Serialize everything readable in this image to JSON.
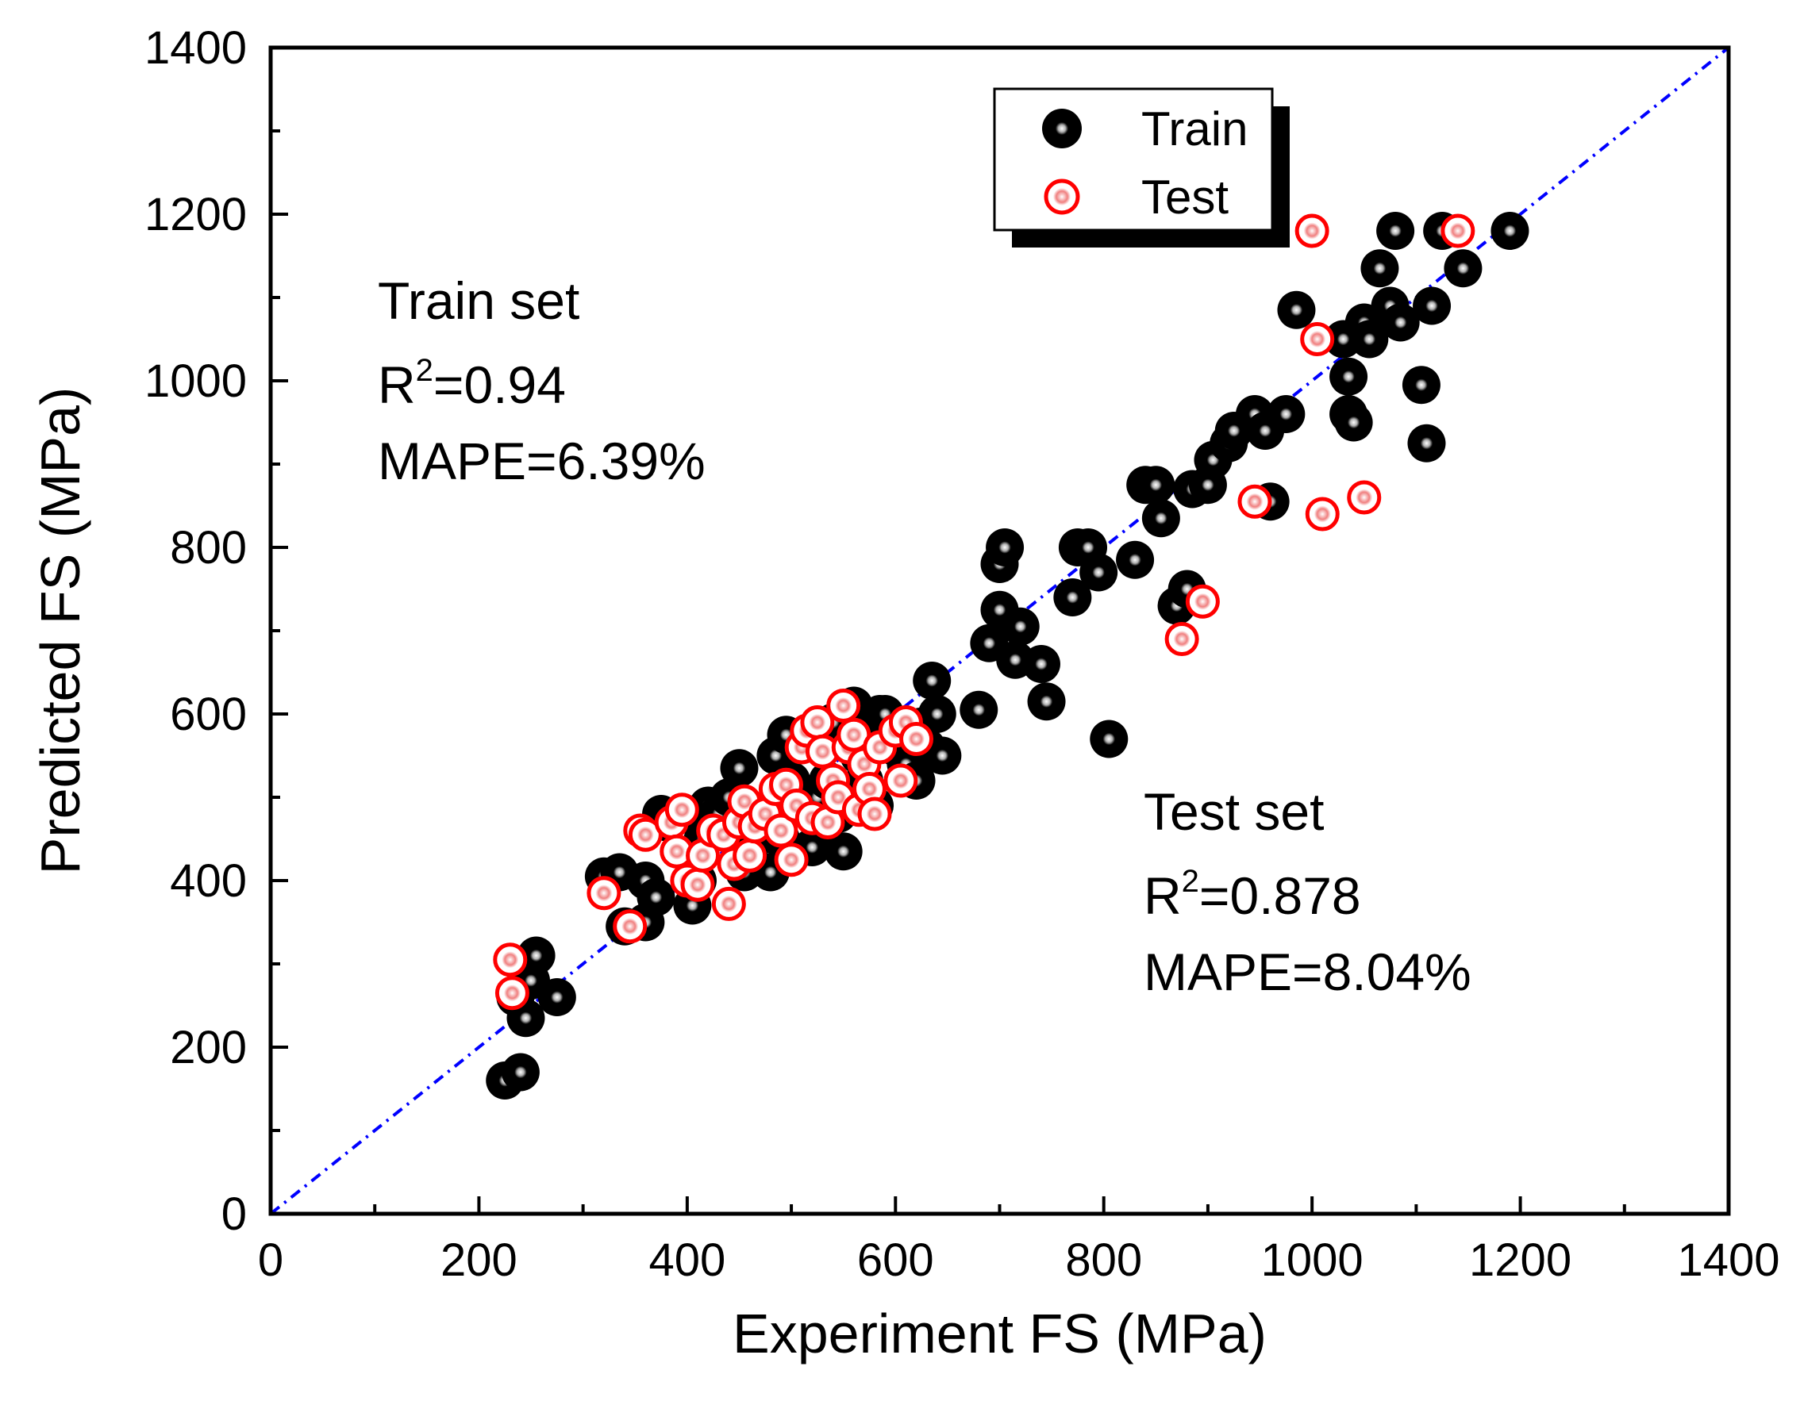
{
  "chart_data": {
    "type": "scatter",
    "title": "",
    "xlabel": "Experiment FS (MPa)",
    "ylabel": "Predicted FS (MPa)",
    "xlim": [
      0,
      1400
    ],
    "ylim": [
      0,
      1400
    ],
    "x_ticks": [
      "0",
      "200",
      "400",
      "600",
      "800",
      "1000",
      "1200",
      "1400"
    ],
    "y_ticks": [
      "0",
      "200",
      "400",
      "600",
      "800",
      "1000",
      "1200",
      "1400"
    ],
    "minor_tick_step": 100,
    "reference_line": {
      "label": "y = x",
      "from": [
        0,
        0
      ],
      "to": [
        1400,
        1400
      ],
      "color": "#0000ff",
      "style": "dash-dot"
    },
    "legend": {
      "position": "top-center",
      "entries": [
        "Train",
        "Test"
      ]
    },
    "annotations": {
      "train": {
        "heading": "Train set",
        "r2_prefix": "R",
        "r2_sup": "2",
        "r2_value": "=0.94",
        "mape": "MAPE=6.39%"
      },
      "test": {
        "heading": "Test set",
        "r2_prefix": "R",
        "r2_sup": "2",
        "r2_value": "=0.878",
        "mape": "MAPE=8.04%"
      }
    },
    "series": [
      {
        "name": "Train",
        "marker": "filled-sphere",
        "color": "#000000",
        "points": [
          [
            225,
            160
          ],
          [
            240,
            170
          ],
          [
            235,
            260
          ],
          [
            245,
            235
          ],
          [
            250,
            280
          ],
          [
            255,
            310
          ],
          [
            275,
            260
          ],
          [
            320,
            405
          ],
          [
            335,
            410
          ],
          [
            340,
            345
          ],
          [
            360,
            350
          ],
          [
            360,
            400
          ],
          [
            370,
            380
          ],
          [
            375,
            480
          ],
          [
            380,
            470
          ],
          [
            400,
            480
          ],
          [
            405,
            370
          ],
          [
            410,
            400
          ],
          [
            415,
            450
          ],
          [
            420,
            490
          ],
          [
            425,
            470
          ],
          [
            430,
            480
          ],
          [
            440,
            500
          ],
          [
            450,
            535
          ],
          [
            455,
            410
          ],
          [
            460,
            440
          ],
          [
            470,
            480
          ],
          [
            480,
            410
          ],
          [
            485,
            550
          ],
          [
            490,
            450
          ],
          [
            495,
            575
          ],
          [
            500,
            520
          ],
          [
            510,
            490
          ],
          [
            520,
            440
          ],
          [
            525,
            500
          ],
          [
            530,
            560
          ],
          [
            535,
            520
          ],
          [
            540,
            590
          ],
          [
            545,
            480
          ],
          [
            550,
            435
          ],
          [
            560,
            610
          ],
          [
            565,
            550
          ],
          [
            570,
            520
          ],
          [
            575,
            560
          ],
          [
            580,
            490
          ],
          [
            585,
            600
          ],
          [
            590,
            600
          ],
          [
            600,
            560
          ],
          [
            610,
            540
          ],
          [
            620,
            520
          ],
          [
            625,
            585
          ],
          [
            630,
            560
          ],
          [
            635,
            640
          ],
          [
            640,
            600
          ],
          [
            645,
            550
          ],
          [
            680,
            605
          ],
          [
            690,
            685
          ],
          [
            700,
            780
          ],
          [
            700,
            725
          ],
          [
            705,
            800
          ],
          [
            715,
            665
          ],
          [
            720,
            705
          ],
          [
            740,
            660
          ],
          [
            745,
            615
          ],
          [
            770,
            740
          ],
          [
            775,
            800
          ],
          [
            785,
            800
          ],
          [
            795,
            770
          ],
          [
            805,
            570
          ],
          [
            830,
            785
          ],
          [
            840,
            875
          ],
          [
            850,
            875
          ],
          [
            855,
            835
          ],
          [
            870,
            730
          ],
          [
            880,
            750
          ],
          [
            885,
            870
          ],
          [
            900,
            875
          ],
          [
            905,
            905
          ],
          [
            920,
            925
          ],
          [
            925,
            940
          ],
          [
            945,
            960
          ],
          [
            955,
            940
          ],
          [
            960,
            855
          ],
          [
            975,
            960
          ],
          [
            985,
            1085
          ],
          [
            1030,
            1050
          ],
          [
            1035,
            1005
          ],
          [
            1035,
            960
          ],
          [
            1040,
            950
          ],
          [
            1050,
            1070
          ],
          [
            1055,
            1050
          ],
          [
            1065,
            1135
          ],
          [
            1075,
            1090
          ],
          [
            1080,
            1180
          ],
          [
            1085,
            1070
          ],
          [
            1105,
            995
          ],
          [
            1110,
            925
          ],
          [
            1115,
            1090
          ],
          [
            1125,
            1180
          ],
          [
            1145,
            1135
          ],
          [
            1190,
            1180
          ]
        ]
      },
      {
        "name": "Test",
        "marker": "hollow-ring",
        "color": "#ff0000",
        "points": [
          [
            230,
            305
          ],
          [
            232,
            265
          ],
          [
            320,
            385
          ],
          [
            345,
            345
          ],
          [
            355,
            460
          ],
          [
            360,
            455
          ],
          [
            385,
            470
          ],
          [
            390,
            435
          ],
          [
            395,
            485
          ],
          [
            400,
            400
          ],
          [
            410,
            395
          ],
          [
            415,
            430
          ],
          [
            425,
            460
          ],
          [
            435,
            455
          ],
          [
            440,
            372
          ],
          [
            445,
            420
          ],
          [
            450,
            470
          ],
          [
            455,
            495
          ],
          [
            460,
            430
          ],
          [
            465,
            465
          ],
          [
            475,
            480
          ],
          [
            485,
            510
          ],
          [
            490,
            460
          ],
          [
            495,
            515
          ],
          [
            500,
            425
          ],
          [
            505,
            490
          ],
          [
            510,
            560
          ],
          [
            515,
            580
          ],
          [
            520,
            475
          ],
          [
            525,
            590
          ],
          [
            530,
            555
          ],
          [
            535,
            470
          ],
          [
            540,
            520
          ],
          [
            545,
            500
          ],
          [
            550,
            610
          ],
          [
            555,
            560
          ],
          [
            560,
            575
          ],
          [
            565,
            485
          ],
          [
            570,
            540
          ],
          [
            575,
            510
          ],
          [
            580,
            480
          ],
          [
            585,
            560
          ],
          [
            600,
            580
          ],
          [
            605,
            520
          ],
          [
            610,
            590
          ],
          [
            620,
            570
          ],
          [
            875,
            690
          ],
          [
            895,
            735
          ],
          [
            945,
            855
          ],
          [
            1000,
            1180
          ],
          [
            1005,
            1050
          ],
          [
            1010,
            840
          ],
          [
            1050,
            860
          ],
          [
            1140,
            1180
          ]
        ]
      }
    ]
  }
}
